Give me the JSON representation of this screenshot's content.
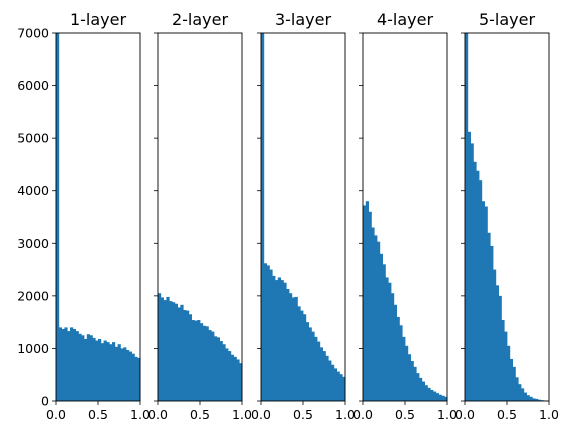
{
  "chart_data": {
    "type": "bar",
    "bar_color": "#1f77b4",
    "bins": 30,
    "x_range": [
      0,
      1
    ],
    "ylim": [
      0,
      7000
    ],
    "y_tick_labels": [
      "0",
      "1000",
      "2000",
      "3000",
      "4000",
      "5000",
      "6000",
      "7000"
    ],
    "x_tick_labels": [
      "0.0",
      "0.5",
      "1.0"
    ],
    "panels": [
      {
        "title": "1-layer",
        "values": [
          7000,
          1400,
          1370,
          1400,
          1330,
          1400,
          1370,
          1330,
          1280,
          1250,
          1180,
          1270,
          1250,
          1200,
          1150,
          1180,
          1100,
          1150,
          1120,
          1080,
          1120,
          1030,
          1080,
          1000,
          1020,
          970,
          940,
          900,
          840,
          820
        ]
      },
      {
        "title": "2-layer",
        "values": [
          2050,
          1970,
          1920,
          1980,
          1900,
          1880,
          1850,
          1780,
          1830,
          1730,
          1720,
          1650,
          1540,
          1530,
          1540,
          1480,
          1430,
          1420,
          1350,
          1320,
          1230,
          1210,
          1140,
          1080,
          1000,
          950,
          880,
          840,
          790,
          720
        ]
      },
      {
        "title": "3-layer",
        "values": [
          7000,
          2620,
          2580,
          2500,
          2380,
          2300,
          2350,
          2300,
          2250,
          2130,
          2050,
          1970,
          1980,
          1800,
          1720,
          1650,
          1500,
          1400,
          1320,
          1220,
          1130,
          1020,
          950,
          860,
          770,
          690,
          620,
          560,
          510,
          460
        ]
      },
      {
        "title": "4-layer",
        "values": [
          3720,
          3800,
          3600,
          3300,
          3150,
          3030,
          2800,
          2600,
          2350,
          2250,
          2050,
          1830,
          1600,
          1440,
          1220,
          1050,
          890,
          760,
          650,
          530,
          440,
          370,
          300,
          250,
          210,
          180,
          150,
          120,
          100,
          80
        ]
      },
      {
        "title": "5-layer",
        "values": [
          7000,
          5120,
          4900,
          4550,
          4380,
          4200,
          3800,
          3700,
          3200,
          2950,
          2500,
          2200,
          2000,
          1540,
          1320,
          1050,
          800,
          650,
          450,
          320,
          240,
          160,
          110,
          80,
          50,
          40,
          25,
          15,
          10,
          5
        ]
      }
    ]
  }
}
